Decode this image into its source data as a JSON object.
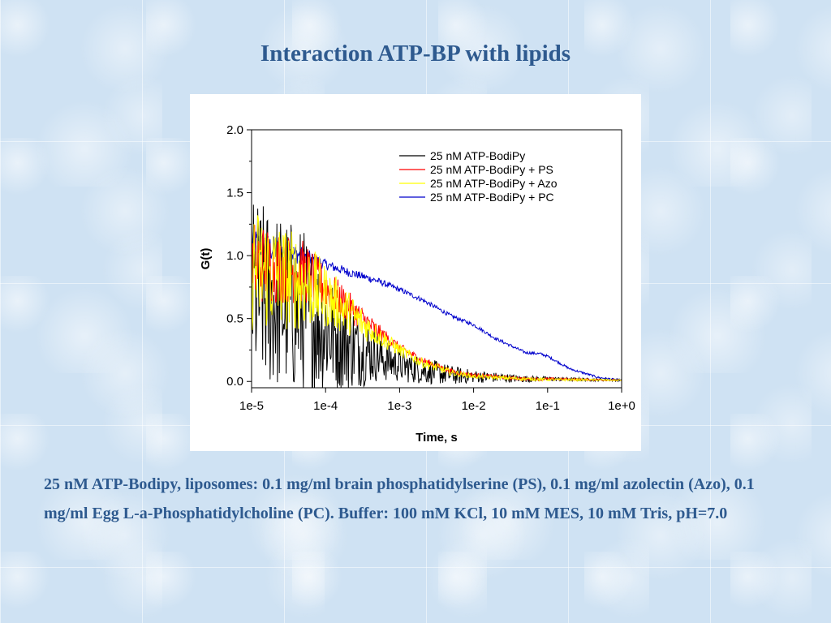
{
  "slide": {
    "title": "Interaction ATP-BP with lipids",
    "caption": "25 nM ATP-Bodipy, liposomes: 0.1 mg/ml brain phosphatidylserine (PS), 0.1 mg/ml azolectin (Azo), 0.1 mg/ml Egg L-a-Phosphatidylcholine (PC). Buffer: 100 mM KCl, 10 mM MES, 10 mM Tris, pH=7.0"
  },
  "chart_data": {
    "type": "line",
    "title": "",
    "xlabel": "Time, s",
    "ylabel": "G(t)",
    "x_scale": "log",
    "xlim": [
      1e-05,
      1
    ],
    "ylim": [
      -0.05,
      2.0
    ],
    "x_ticks": [
      "1e-5",
      "1e-4",
      "1e-3",
      "1e-2",
      "1e-1",
      "1e+0"
    ],
    "y_ticks": [
      "0.0",
      "0.5",
      "1.0",
      "1.5",
      "2.0"
    ],
    "grid": false,
    "legend_position": "top-right",
    "series": [
      {
        "name": "25 nM ATP-BodiPy",
        "color": "#000000",
        "points": [
          [
            1e-05,
            0.7
          ],
          [
            2e-05,
            0.65
          ],
          [
            5e-05,
            0.55
          ],
          [
            0.0001,
            0.42
          ],
          [
            0.0002,
            0.3
          ],
          [
            0.0005,
            0.2
          ],
          [
            0.001,
            0.13
          ],
          [
            0.002,
            0.09
          ],
          [
            0.005,
            0.05
          ],
          [
            0.01,
            0.04
          ],
          [
            0.05,
            0.02
          ],
          [
            0.1,
            0.02
          ],
          [
            1,
            0.01
          ]
        ],
        "noise": [
          [
            1e-05,
            0.45
          ],
          [
            5e-05,
            0.4
          ],
          [
            0.0001,
            0.3
          ],
          [
            0.0005,
            0.12
          ],
          [
            0.001,
            0.08
          ],
          [
            0.01,
            0.03
          ],
          [
            0.1,
            0.01
          ],
          [
            1,
            0.005
          ]
        ]
      },
      {
        "name": "25 nM ATP-BodiPy + PS",
        "color": "#ff0000",
        "points": [
          [
            1e-05,
            0.95
          ],
          [
            2e-05,
            0.92
          ],
          [
            5e-05,
            0.87
          ],
          [
            0.0001,
            0.75
          ],
          [
            0.0002,
            0.6
          ],
          [
            0.0005,
            0.4
          ],
          [
            0.001,
            0.27
          ],
          [
            0.002,
            0.17
          ],
          [
            0.005,
            0.08
          ],
          [
            0.01,
            0.05
          ],
          [
            0.05,
            0.02
          ],
          [
            0.1,
            0.02
          ],
          [
            1,
            0.01
          ]
        ],
        "noise": [
          [
            1e-05,
            0.2
          ],
          [
            5e-05,
            0.15
          ],
          [
            0.0001,
            0.1
          ],
          [
            0.0005,
            0.04
          ],
          [
            0.001,
            0.02
          ],
          [
            0.01,
            0.01
          ],
          [
            1,
            0.003
          ]
        ]
      },
      {
        "name": "25 nM ATP-BodiPy + Azo",
        "color": "#ffff00",
        "points": [
          [
            1e-05,
            0.9
          ],
          [
            2e-05,
            0.85
          ],
          [
            5e-05,
            0.78
          ],
          [
            0.0001,
            0.68
          ],
          [
            0.0002,
            0.55
          ],
          [
            0.0005,
            0.37
          ],
          [
            0.001,
            0.25
          ],
          [
            0.002,
            0.15
          ],
          [
            0.005,
            0.07
          ],
          [
            0.01,
            0.04
          ],
          [
            0.05,
            0.02
          ],
          [
            0.1,
            0.015
          ],
          [
            1,
            0.01
          ]
        ],
        "noise": [
          [
            1e-05,
            0.3
          ],
          [
            5e-05,
            0.22
          ],
          [
            0.0001,
            0.15
          ],
          [
            0.0005,
            0.05
          ],
          [
            0.001,
            0.03
          ],
          [
            0.01,
            0.01
          ],
          [
            1,
            0.003
          ]
        ]
      },
      {
        "name": "25 nM ATP-BodiPy + PC",
        "color": "#0000cc",
        "points": [
          [
            1e-05,
            1.1
          ],
          [
            2e-05,
            1.05
          ],
          [
            5e-05,
            1.0
          ],
          [
            0.0001,
            0.93
          ],
          [
            0.0002,
            0.87
          ],
          [
            0.0005,
            0.8
          ],
          [
            0.001,
            0.73
          ],
          [
            0.002,
            0.65
          ],
          [
            0.005,
            0.52
          ],
          [
            0.01,
            0.45
          ],
          [
            0.02,
            0.34
          ],
          [
            0.05,
            0.23
          ],
          [
            0.08,
            0.22
          ],
          [
            0.1,
            0.2
          ],
          [
            0.2,
            0.1
          ],
          [
            0.5,
            0.03
          ],
          [
            1,
            0.01
          ]
        ],
        "noise": [
          [
            1e-05,
            0.08
          ],
          [
            5e-05,
            0.04
          ],
          [
            0.0001,
            0.025
          ],
          [
            0.001,
            0.012
          ],
          [
            0.01,
            0.008
          ],
          [
            1,
            0.004
          ]
        ]
      }
    ]
  }
}
